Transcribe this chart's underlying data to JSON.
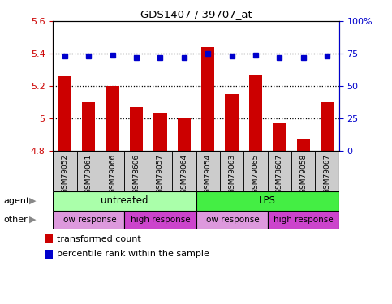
{
  "title": "GDS1407 / 39707_at",
  "samples": [
    "GSM79052",
    "GSM79061",
    "GSM79066",
    "GSM78606",
    "GSM79057",
    "GSM79064",
    "GSM79054",
    "GSM79063",
    "GSM79065",
    "GSM78607",
    "GSM79058",
    "GSM79067"
  ],
  "bar_values": [
    5.26,
    5.1,
    5.2,
    5.07,
    5.03,
    5.0,
    5.44,
    5.15,
    5.27,
    4.97,
    4.87,
    5.1
  ],
  "dot_values": [
    73,
    73,
    74,
    72,
    72,
    72,
    75,
    73,
    74,
    72,
    72,
    73
  ],
  "ylim_left": [
    4.8,
    5.6
  ],
  "ylim_right": [
    0,
    100
  ],
  "yticks_left": [
    4.8,
    5.0,
    5.2,
    5.4,
    5.6
  ],
  "ytick_labels_left": [
    "4.8",
    "5",
    "5.2",
    "5.4",
    "5.6"
  ],
  "yticks_right": [
    0,
    25,
    50,
    75,
    100
  ],
  "ytick_labels_right": [
    "0",
    "25",
    "50",
    "75",
    "100%"
  ],
  "bar_color": "#cc0000",
  "dot_color": "#0000cc",
  "bar_base": 4.8,
  "agent_labels": [
    {
      "text": "untreated",
      "start": 0,
      "end": 6,
      "color": "#aaffaa"
    },
    {
      "text": "LPS",
      "start": 6,
      "end": 12,
      "color": "#44ee44"
    }
  ],
  "other_labels": [
    {
      "text": "low response",
      "start": 0,
      "end": 3,
      "color": "#dd99dd"
    },
    {
      "text": "high response",
      "start": 3,
      "end": 6,
      "color": "#cc44cc"
    },
    {
      "text": "low response",
      "start": 6,
      "end": 9,
      "color": "#dd99dd"
    },
    {
      "text": "high response",
      "start": 9,
      "end": 12,
      "color": "#cc44cc"
    }
  ],
  "legend_red_label": "transformed count",
  "legend_blue_label": "percentile rank within the sample",
  "agent_row_label": "agent",
  "other_row_label": "other",
  "hline_values": [
    5.0,
    5.2,
    5.4
  ],
  "sample_bg": "#cccccc",
  "plot_bg": "white"
}
